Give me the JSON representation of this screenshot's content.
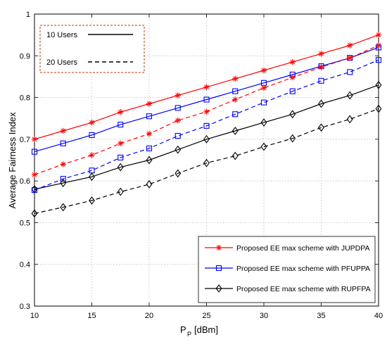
{
  "chart_data": {
    "type": "line",
    "xlabel_main": "P",
    "xlabel_sub": "P",
    "xlabel_unit": "[dBm]",
    "ylabel": "Average Fairness Index",
    "xlim": [
      10,
      40
    ],
    "ylim": [
      0.3,
      1
    ],
    "xticks": [
      10,
      15,
      20,
      25,
      30,
      35,
      40
    ],
    "yticks": [
      0.3,
      0.4,
      0.5,
      0.6,
      0.7,
      0.8,
      0.9,
      1
    ],
    "grid": "dotted",
    "x": [
      10,
      12.5,
      15,
      17.5,
      20,
      22.5,
      25,
      27.5,
      30,
      32.5,
      35,
      37.5,
      40
    ],
    "series": [
      {
        "name": "Proposed EE max scheme with JUPDPA",
        "users": "10 Users",
        "color": "#ff0000",
        "marker": "star",
        "linestyle": "solid",
        "values": [
          0.7,
          0.72,
          0.74,
          0.765,
          0.785,
          0.805,
          0.825,
          0.845,
          0.865,
          0.885,
          0.905,
          0.925,
          0.95
        ]
      },
      {
        "name": "Proposed EE max scheme with PFUPPA",
        "users": "10 Users",
        "color": "#0000ff",
        "marker": "square",
        "linestyle": "solid",
        "values": [
          0.67,
          0.69,
          0.71,
          0.735,
          0.755,
          0.775,
          0.795,
          0.815,
          0.835,
          0.855,
          0.875,
          0.895,
          0.92
        ]
      },
      {
        "name": "Proposed EE max scheme with RUPFPA",
        "users": "10 Users",
        "color": "#000000",
        "marker": "diamond",
        "linestyle": "solid",
        "values": [
          0.58,
          0.595,
          0.61,
          0.633,
          0.65,
          0.675,
          0.7,
          0.72,
          0.74,
          0.76,
          0.785,
          0.805,
          0.83
        ]
      },
      {
        "name": "Proposed EE max scheme with JUPDPA",
        "users": "20 Users",
        "color": "#ff0000",
        "marker": "star",
        "linestyle": "dashed",
        "values": [
          0.615,
          0.64,
          0.662,
          0.69,
          0.713,
          0.745,
          0.766,
          0.795,
          0.823,
          0.848,
          0.873,
          0.895,
          0.925
        ]
      },
      {
        "name": "Proposed EE max scheme with PFUPPA",
        "users": "20 Users",
        "color": "#0000ff",
        "marker": "square",
        "linestyle": "dashed",
        "values": [
          0.578,
          0.605,
          0.625,
          0.656,
          0.678,
          0.708,
          0.732,
          0.76,
          0.788,
          0.815,
          0.84,
          0.861,
          0.89
        ]
      },
      {
        "name": "Proposed EE max scheme with RUPFPA",
        "users": "20 Users",
        "color": "#000000",
        "marker": "diamond",
        "linestyle": "dashed",
        "values": [
          0.522,
          0.537,
          0.553,
          0.574,
          0.592,
          0.618,
          0.643,
          0.66,
          0.682,
          0.702,
          0.728,
          0.748,
          0.773
        ]
      }
    ],
    "legend": {
      "placement": "bottom-right",
      "entries": [
        {
          "label": "Proposed EE max scheme with JUPDPA",
          "color": "#ff0000",
          "marker": "star"
        },
        {
          "label": "Proposed EE max scheme with PFUPPA",
          "color": "#0000ff",
          "marker": "square"
        },
        {
          "label": "Proposed EE max scheme with RUPFPA",
          "color": "#000000",
          "marker": "diamond"
        }
      ]
    },
    "user_legend": {
      "placement": "top-left",
      "border_color": "#cc3300",
      "entries": [
        {
          "label": "10 Users",
          "linestyle": "solid"
        },
        {
          "label": "20 Users",
          "linestyle": "dashed"
        }
      ]
    }
  }
}
